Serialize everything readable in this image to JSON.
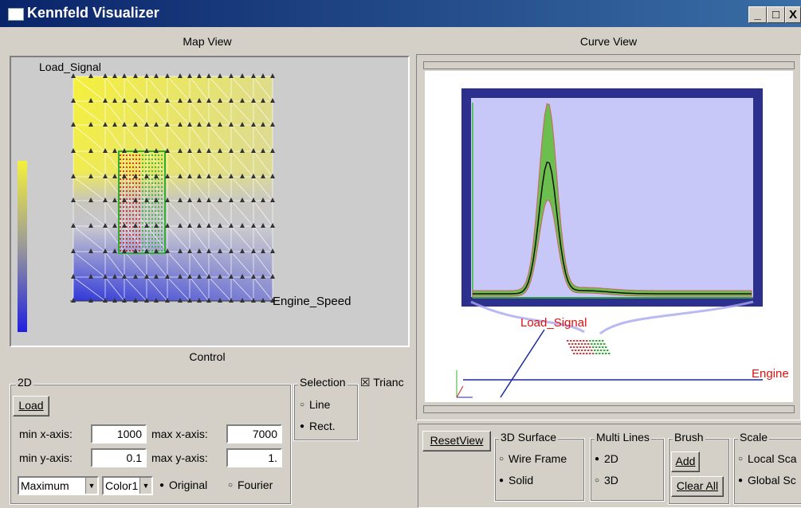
{
  "window": {
    "title": "Kennfeld Visualizer",
    "controls": [
      "_",
      "□",
      "X"
    ]
  },
  "map_view": {
    "title": "Map View",
    "y_label": "Load_Signal",
    "x_label": "Engine_Speed",
    "colors": {
      "high": "#f5f03a",
      "mid": "#c8c8c8",
      "low": "#2d35d8",
      "selection_red": "#d02020",
      "selection_green": "#30b030"
    }
  },
  "curve_view": {
    "title": "Curve View",
    "label_load": "Load_Signal",
    "label_engine": "Engine",
    "colors": {
      "frame": "#2d2f8f",
      "plot_bg": "#c8c8f8",
      "band": "#6cbf4f",
      "mean": "#101010",
      "axis_x": "#1a2aa0"
    }
  },
  "control": {
    "title": "Control",
    "group_2d": "2D",
    "load_button": "Load",
    "min_x_label": "min x-axis:",
    "min_x_value": "1000",
    "max_x_label": "max x-axis:",
    "max_x_value": "7000",
    "min_y_label": "min y-axis:",
    "min_y_value": "0.1",
    "max_y_label": "max y-axis:",
    "max_y_value": "1.",
    "aggregate_select": "Maximum",
    "color_select": "Color1",
    "radio_original": "Original",
    "radio_fourier": "Fourier",
    "selection_group": "Selection",
    "selection_line": "Line",
    "selection_rect": "Rect.",
    "triangle_check": "Trianc"
  },
  "curve_controls": {
    "reset_view": "ResetView",
    "surface_group": "3D Surface",
    "wire_frame": "Wire Frame",
    "solid": "Solid",
    "multi_lines_group": "Multi Lines",
    "ml_2d": "2D",
    "ml_3d": "3D",
    "brush_group": "Brush",
    "add": "Add",
    "clear_all": "Clear All",
    "scale_group": "Scale",
    "local_scale": "Local Sca",
    "global_scale": "Global Sc"
  }
}
